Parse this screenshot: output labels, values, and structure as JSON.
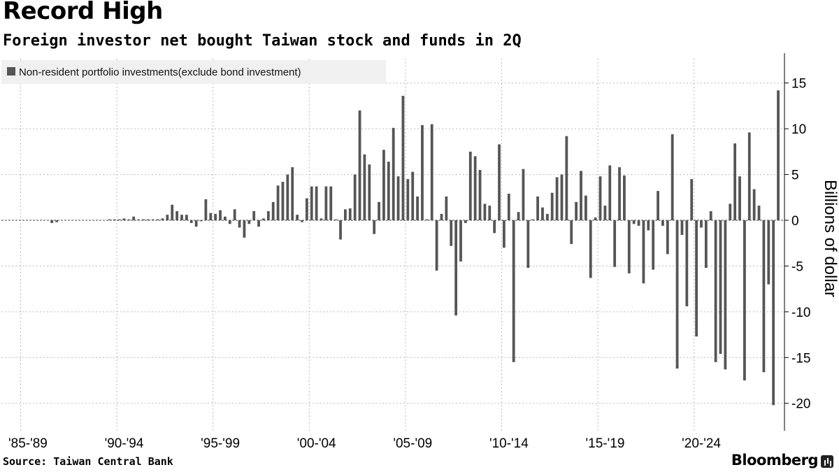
{
  "header": {
    "title": "Record High",
    "subtitle": "Foreign investor net bought Taiwan stock and funds in 2Q"
  },
  "footer": {
    "source": "Source: Taiwan Central Bank",
    "brand": "Bloomberg"
  },
  "colors": {
    "bar": "#555555",
    "grid": "#bbbbbb",
    "legend_bg": "#f0f0f0",
    "axis_text": "#000000"
  },
  "chart_data": {
    "type": "bar",
    "title": "Record High",
    "subtitle": "Foreign investor net bought Taiwan stock and funds in 2Q",
    "legend": [
      "Non-resident portfolio investments(exclude bond investment)"
    ],
    "legend_position": "top-left",
    "ylabel": "Billions of dollar",
    "ylim": [
      -23,
      17.5
    ],
    "yticks": [
      15,
      10,
      5,
      0,
      -5,
      -10,
      -15,
      -20
    ],
    "yaxis_side": "right",
    "grid": true,
    "xlabel": "",
    "xlim": [
      1985.0,
      2025.7
    ],
    "x_tick_labels": [
      "'85-'89",
      "'90-'94",
      "'95-'99",
      "'00-'04",
      "'05-'09",
      "'10-'14",
      "'15-'19",
      "'20-'24"
    ],
    "x_tick_starts": [
      1985,
      1990,
      1995,
      2000,
      2005,
      2010,
      2015,
      2020
    ],
    "x_grid_years": [
      1986,
      1991,
      1996,
      2001,
      2006,
      2011,
      2016,
      2021
    ],
    "series": [
      {
        "name": "Non-resident portfolio investments(exclude bond investment)",
        "start_year": 1985,
        "frequency": "quarterly",
        "values": [
          0,
          0,
          0,
          0,
          0,
          0,
          0,
          0,
          0,
          0,
          -0.3,
          -0.2,
          0,
          0,
          0,
          0,
          0,
          0,
          0,
          0,
          0,
          0,
          0.1,
          0.1,
          0.1,
          0.2,
          0.1,
          0.4,
          0.1,
          0.1,
          0.1,
          0.1,
          0.1,
          0.2,
          0.6,
          1.7,
          1.0,
          0.6,
          0.6,
          -0.3,
          -0.7,
          -0.1,
          2.3,
          0.8,
          0.7,
          1.1,
          0.4,
          -0.4,
          1.2,
          -0.8,
          -1.9,
          -0.4,
          1.0,
          -0.7,
          0.2,
          1.0,
          2.0,
          3.8,
          4.2,
          5.0,
          5.8,
          0.6,
          -0.2,
          2.4,
          3.7,
          3.7,
          0.2,
          3.7,
          3.7,
          0.1,
          -2.1,
          1.2,
          1.3,
          5.0,
          12.0,
          7.2,
          6.1,
          -1.5,
          2.0,
          7.7,
          6.4,
          10.1,
          4.8,
          13.6,
          4.5,
          5.3,
          2.6,
          10.4,
          0.1,
          10.5,
          -5.5,
          0.7,
          2.6,
          -2.8,
          -10.4,
          -4.5,
          -0.3,
          7.5,
          7.0,
          5.5,
          1.8,
          1.6,
          -1.4,
          8.3,
          -3.0,
          2.9,
          -15.5,
          0.9,
          5.6,
          -5.2,
          0.1,
          2.6,
          1.4,
          0.7,
          3.0,
          4.7,
          5.0,
          9.2,
          -2.6,
          2.0,
          5.4,
          2.7,
          -6.3,
          0.3,
          4.8,
          1.6,
          6.0,
          -5.1,
          5.8,
          4.9,
          -5.8,
          -0.4,
          -0.6,
          -6.9,
          -1.1,
          -5.4,
          3.2,
          -0.6,
          -3.7,
          9.4,
          -16.2,
          -1.6,
          -9.4,
          4.5,
          -12.7,
          -0.8,
          -5.2,
          1.0,
          -15.5,
          -14.6,
          -16.3,
          1.8,
          8.4,
          4.8,
          -17.5,
          9.6,
          3.4,
          1.6,
          -16.6,
          -7.0,
          -20.2,
          14.2
        ]
      }
    ]
  }
}
